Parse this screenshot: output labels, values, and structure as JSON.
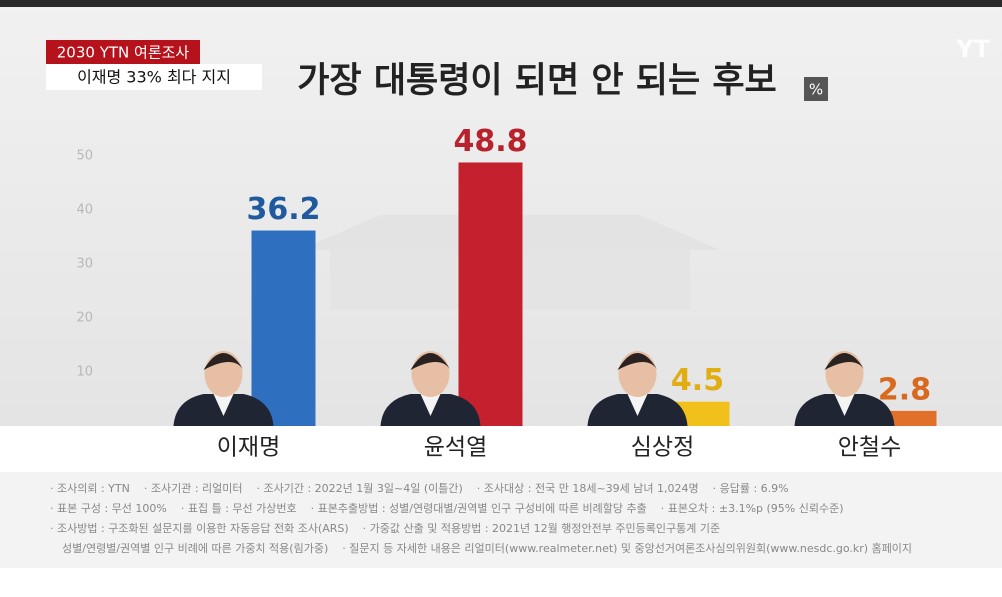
{
  "chart_data": {
    "type": "bar",
    "badge": "2030 YTN 여론조사",
    "subtitle": "이재명 33% 최다 지지",
    "title": "가장 대통령이 되면 안 되는 후보",
    "unit": "%",
    "logo": "YT",
    "categories": [
      "이재명",
      "윤석열",
      "심상정",
      "안철수"
    ],
    "values": [
      36.2,
      48.8,
      4.5,
      2.8
    ],
    "colors": [
      "#2f6fbf",
      "#c4202e",
      "#f2c01a",
      "#e0702a"
    ],
    "label_colors": [
      "#1f5a9e",
      "#b8222c",
      "#e2ad12",
      "#d8691f"
    ],
    "ylim": [
      0,
      55
    ],
    "yticks": [
      10,
      20,
      30,
      40,
      50
    ],
    "grid": false,
    "notes": [
      [
        "· 조사의뢰 : YTN",
        "· 조사기관 : 리얼미터",
        "· 조사기간 : 2022년 1월 3일~4일 (이틀간)",
        "· 조사대상 : 전국 만 18세~39세 남녀 1,024명",
        "· 응답률 : 6.9%"
      ],
      [
        "· 표본 구성 : 무선 100%",
        "· 표집 틀 : 무선 가상번호",
        "· 표본추출방법 : 성별/연령대별/권역별 인구 구성비에 따른 비례할당 추출",
        "· 표본오차 : ±3.1%p (95% 신뢰수준)"
      ],
      [
        "· 조사방법 : 구조화된 설문지를 이용한 자동응답 전화 조사(ARS)",
        "· 가중값 산출 및 적용방법 : 2021년 12월 행정안전부 주민등록인구통계 기준"
      ],
      [
        "성별/연령별/권역별 인구 비례에 따른 가중치 적용(림가중)",
        "· 질문지 등 자세한 내용은 리얼미터(www.realmeter.net) 및 중앙선거여론조사심의위원회(www.nesdc.go.kr) 홈페이지"
      ]
    ]
  }
}
